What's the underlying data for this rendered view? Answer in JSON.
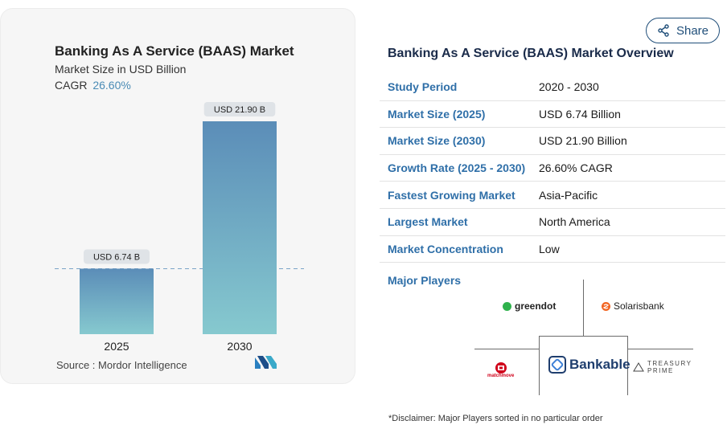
{
  "chart": {
    "title": "Banking As A Service (BAAS) Market",
    "subtitle": "Market Size in USD Billion",
    "cagr_label": "CAGR",
    "cagr_value": "26.60%",
    "source": "Source :  Mordor Intelligence"
  },
  "chart_data": {
    "type": "bar",
    "title": "Banking As A Service (BAAS) Market",
    "subtitle": "Market Size in USD Billion",
    "categories": [
      "2025",
      "2030"
    ],
    "values": [
      6.74,
      21.9
    ],
    "value_labels": [
      "USD 6.74 B",
      "USD 21.90 B"
    ],
    "ylim": [
      0,
      21.9
    ],
    "grid": false,
    "reference_line": "dashed line at 2025 value"
  },
  "share": {
    "label": "Share"
  },
  "overview": {
    "title": "Banking As A Service (BAAS) Market Overview",
    "rows": [
      {
        "label": "Study Period",
        "value": "2020 - 2030"
      },
      {
        "label": "Market Size (2025)",
        "value": "USD 6.74 Billion"
      },
      {
        "label": "Market Size (2030)",
        "value": "USD 21.90 Billion"
      },
      {
        "label": "Growth Rate (2025 - 2030)",
        "value": "26.60% CAGR"
      },
      {
        "label": "Fastest Growing Market",
        "value": "Asia-Pacific"
      },
      {
        "label": "Largest Market",
        "value": "North America"
      },
      {
        "label": "Market Concentration",
        "value": "Low"
      }
    ]
  },
  "players": {
    "label": "Major Players",
    "items": [
      {
        "name": "greendot",
        "color": "#2fb24c"
      },
      {
        "name": "Solarisbank",
        "color": "#f26522"
      },
      {
        "name": "Bankable",
        "color": "#1f3e6e"
      },
      {
        "name": "matchmove",
        "color": "#d0021b"
      },
      {
        "name": "TREASURY",
        "name2": "PRIME",
        "color": "#444444"
      }
    ],
    "disclaimer": "*Disclaimer: Major Players sorted in no particular order"
  },
  "colors": {
    "bar_top": "#5b8db8",
    "bar_bottom": "#86c9cf",
    "accent": "#2f6fa8"
  }
}
